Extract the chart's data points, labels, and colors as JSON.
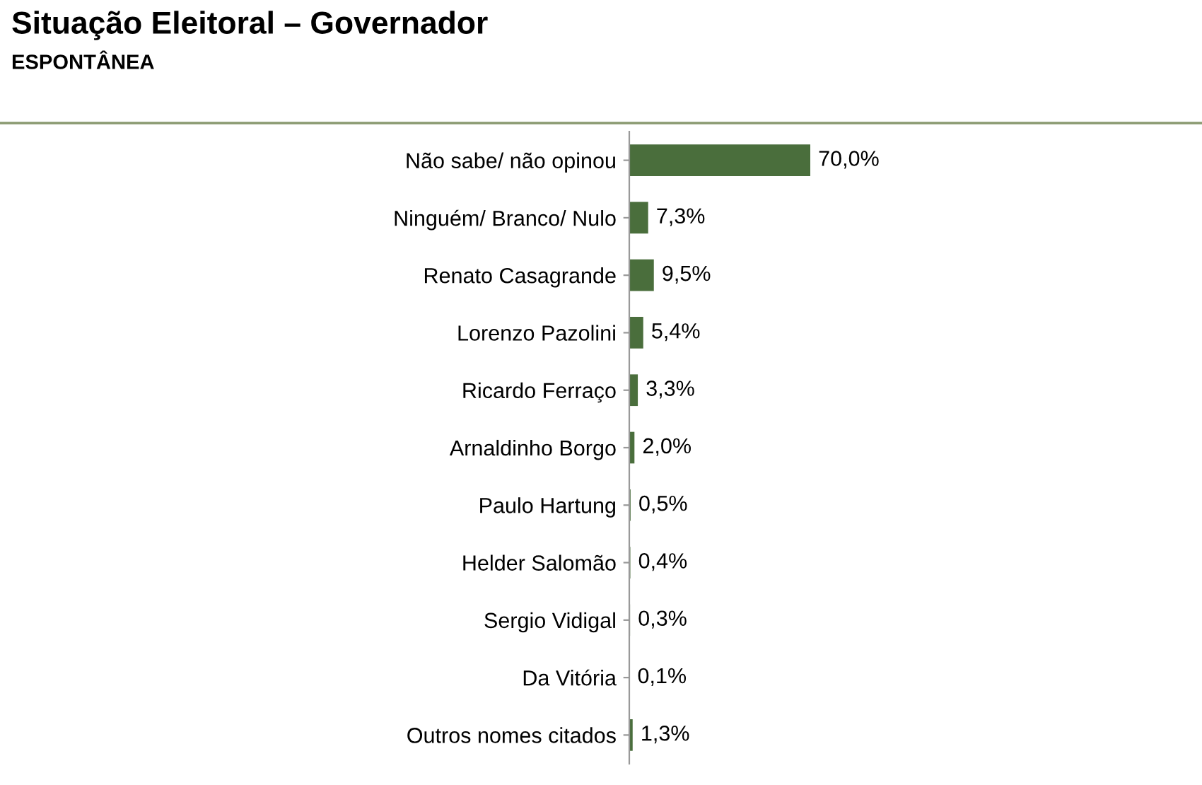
{
  "chart_data": {
    "type": "bar",
    "orientation": "horizontal",
    "title": "Situação Eleitoral – Governador",
    "subtitle": "ESPONTÂNEA",
    "categories": [
      "Não sabe/ não opinou",
      "Ninguém/ Branco/ Nulo",
      "Renato Casagrande",
      "Lorenzo Pazolini",
      "Ricardo Ferraço",
      "Arnaldinho Borgo",
      "Paulo Hartung",
      "Helder Salomão",
      "Sergio Vidigal",
      "Da Vitória",
      "Outros nomes citados"
    ],
    "values": [
      70.0,
      7.3,
      9.5,
      5.4,
      3.3,
      2.0,
      0.5,
      0.4,
      0.3,
      0.1,
      1.3
    ],
    "value_labels": [
      "70,0%",
      "7,3%",
      "9,5%",
      "5,4%",
      "3,3%",
      "2,0%",
      "0,5%",
      "0,4%",
      "0,3%",
      "0,1%",
      "1,3%"
    ],
    "color": "#4a6e3c",
    "grid": false,
    "legend": false
  }
}
